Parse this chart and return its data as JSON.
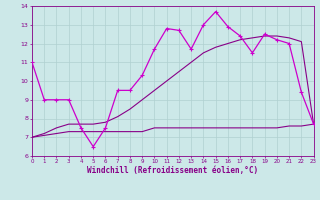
{
  "xlabel": "Windchill (Refroidissement éolien,°C)",
  "bg_color": "#cce8e8",
  "grid_color": "#b0d0d0",
  "line_color_main": "#cc00cc",
  "line_color_secondary": "#880088",
  "hours": [
    0,
    1,
    2,
    3,
    4,
    5,
    6,
    7,
    8,
    9,
    10,
    11,
    12,
    13,
    14,
    15,
    16,
    17,
    18,
    19,
    20,
    21,
    22,
    23
  ],
  "series_main": [
    11.0,
    9.0,
    9.0,
    9.0,
    7.5,
    6.5,
    7.5,
    9.5,
    9.5,
    10.3,
    11.7,
    12.8,
    12.7,
    11.7,
    13.0,
    13.7,
    12.9,
    12.4,
    11.5,
    12.5,
    12.2,
    12.0,
    9.4,
    7.7
  ],
  "series_flat": [
    7.0,
    7.1,
    7.2,
    7.3,
    7.3,
    7.3,
    7.3,
    7.3,
    7.3,
    7.3,
    7.5,
    7.5,
    7.5,
    7.5,
    7.5,
    7.5,
    7.5,
    7.5,
    7.5,
    7.5,
    7.5,
    7.6,
    7.6,
    7.7
  ],
  "series_trend": [
    7.0,
    7.2,
    7.5,
    7.7,
    7.7,
    7.7,
    7.8,
    8.1,
    8.5,
    9.0,
    9.5,
    10.0,
    10.5,
    11.0,
    11.5,
    11.8,
    12.0,
    12.2,
    12.3,
    12.4,
    12.4,
    12.3,
    12.1,
    7.7
  ],
  "ylim": [
    6,
    14
  ],
  "xlim": [
    0,
    23
  ],
  "yticks": [
    6,
    7,
    8,
    9,
    10,
    11,
    12,
    13,
    14
  ],
  "xticks": [
    0,
    1,
    2,
    3,
    4,
    5,
    6,
    7,
    8,
    9,
    10,
    11,
    12,
    13,
    14,
    15,
    16,
    17,
    18,
    19,
    20,
    21,
    22,
    23
  ]
}
